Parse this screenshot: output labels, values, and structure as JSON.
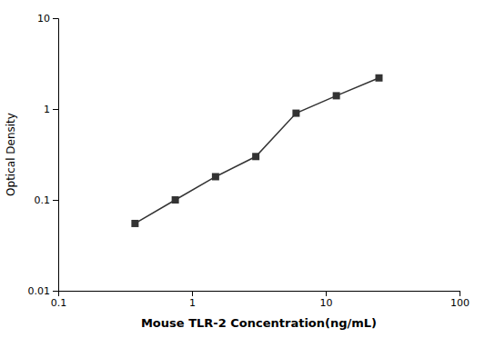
{
  "chart_data": {
    "type": "line",
    "x": [
      0.375,
      0.75,
      1.5,
      3.0,
      6.0,
      12.0,
      25.0
    ],
    "values": [
      0.055,
      0.1,
      0.18,
      0.3,
      0.9,
      1.4,
      2.2
    ],
    "xlim": [
      0.1,
      100
    ],
    "ylim": [
      0.01,
      10
    ],
    "xticks": [
      0.1,
      1,
      10,
      100
    ],
    "yticks": [
      0.01,
      0.1,
      1,
      10
    ],
    "xlabel": "Mouse TLR-2 Concentration(ng/mL)",
    "ylabel": "Optical Density",
    "log": true,
    "grid": false,
    "color": "#333333",
    "marker": "square"
  }
}
